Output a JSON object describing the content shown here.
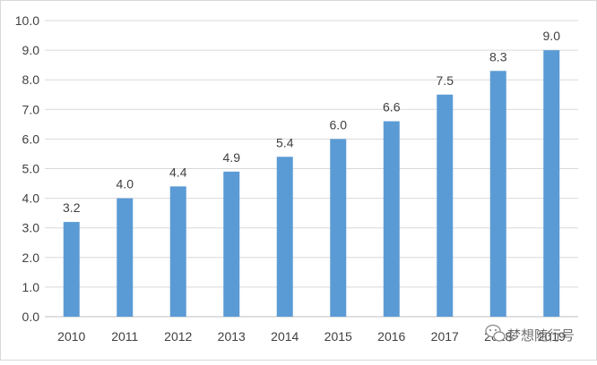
{
  "chart_data": {
    "type": "bar",
    "categories": [
      "2010",
      "2011",
      "2012",
      "2013",
      "2014",
      "2015",
      "2016",
      "2017",
      "2018",
      "2019"
    ],
    "values": [
      3.2,
      4.0,
      4.4,
      4.9,
      5.4,
      6.0,
      6.6,
      7.5,
      8.3,
      9.0
    ],
    "data_labels": [
      "3.2",
      "4.0",
      "4.4",
      "4.9",
      "5.4",
      "6.0",
      "6.6",
      "7.5",
      "8.3",
      "9.0"
    ],
    "y_ticks": [
      "0.0",
      "1.0",
      "2.0",
      "3.0",
      "4.0",
      "5.0",
      "6.0",
      "7.0",
      "8.0",
      "9.0",
      "10.0"
    ],
    "ylim": [
      0,
      10
    ],
    "grid": true,
    "bar_color": "#5b9bd5",
    "title": "",
    "xlabel": "",
    "ylabel": ""
  },
  "watermark": {
    "text": "梦想随行号",
    "icon": "wechat-icon"
  }
}
